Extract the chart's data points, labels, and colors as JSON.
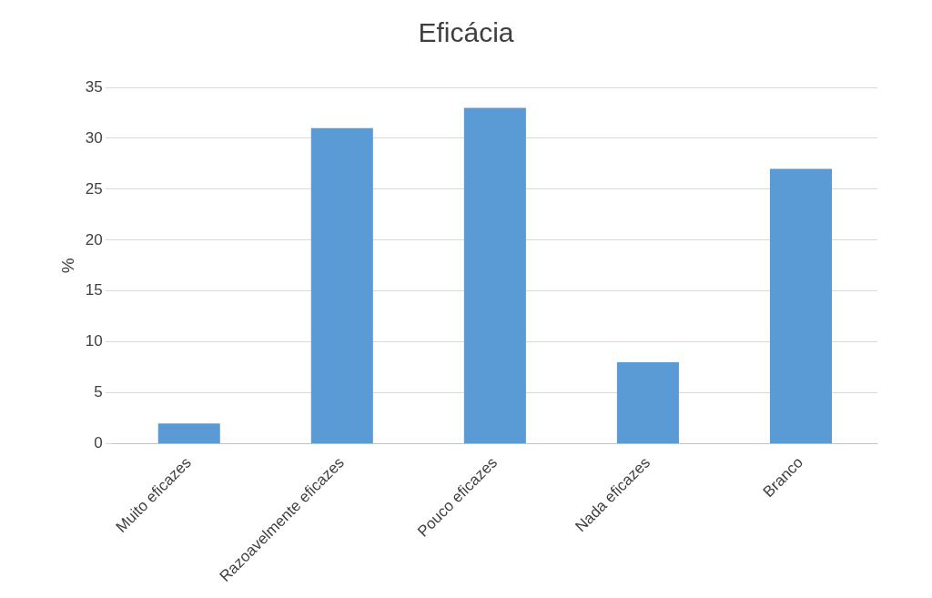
{
  "chart_data": {
    "type": "bar",
    "title": "Eficácia",
    "ylabel": "%",
    "categories": [
      "Muito eficazes",
      "Razoavelmente eficazes",
      "Pouco eficazes",
      "Nada eficazes",
      "Branco"
    ],
    "values": [
      2,
      31,
      33,
      8,
      27
    ],
    "color": "#5b9bd5",
    "ylim": [
      0,
      35
    ],
    "yticks": [
      0,
      5,
      10,
      15,
      20,
      25,
      30,
      35
    ],
    "grid": "y"
  }
}
